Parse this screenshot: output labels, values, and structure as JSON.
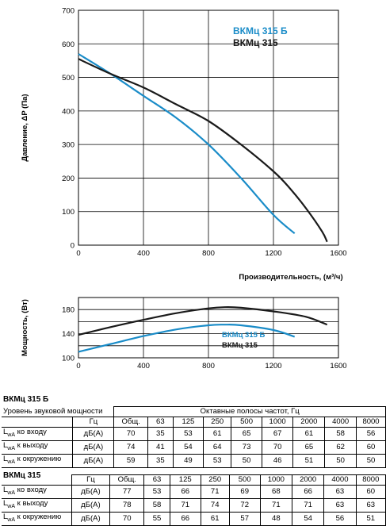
{
  "chart_data": [
    {
      "type": "line",
      "xlabel": "Производительность, (м³/ч)",
      "ylabel": "Давление, ΔP (Па)",
      "xlim": [
        0,
        1600
      ],
      "ylim": [
        0,
        700
      ],
      "xticks": [
        "0",
        "400",
        "800",
        "1200",
        "1600"
      ],
      "yticks": [
        "0",
        "100",
        "200",
        "300",
        "400",
        "500",
        "600",
        "700"
      ],
      "grid": true,
      "legend_position": "top-right",
      "series": [
        {
          "name": "ВКМц 315 Б",
          "color": "#1a8cc8",
          "x": [
            0,
            200,
            400,
            600,
            800,
            1000,
            1200,
            1330
          ],
          "y": [
            570,
            510,
            445,
            380,
            300,
            200,
            90,
            35
          ]
        },
        {
          "name": "ВКМц 315",
          "color": "#1a1a1a",
          "x": [
            0,
            200,
            400,
            600,
            800,
            1000,
            1200,
            1300,
            1400,
            1500,
            1530
          ],
          "y": [
            555,
            510,
            470,
            420,
            370,
            300,
            220,
            170,
            110,
            40,
            10
          ]
        }
      ]
    },
    {
      "type": "line",
      "xlabel": "",
      "ylabel": "Мощность, (Вт)",
      "xlim": [
        0,
        1600
      ],
      "ylim": [
        100,
        200
      ],
      "xticks": [
        "0",
        "400",
        "800",
        "1200",
        "1600"
      ],
      "yticks": [
        "100",
        "140",
        "180"
      ],
      "grid": true,
      "legend_position": "bottom-right",
      "series": [
        {
          "name": "ВКМц 315 Б",
          "color": "#1a8cc8",
          "x": [
            0,
            200,
            400,
            600,
            800,
            900,
            1000,
            1200,
            1330
          ],
          "y": [
            110,
            123,
            136,
            147,
            154,
            155,
            154,
            146,
            135
          ]
        },
        {
          "name": "ВКМц 315",
          "color": "#1a1a1a",
          "x": [
            0,
            200,
            400,
            600,
            800,
            900,
            1000,
            1200,
            1400,
            1530
          ],
          "y": [
            138,
            151,
            163,
            174,
            182,
            184,
            183,
            177,
            168,
            155
          ]
        }
      ]
    }
  ],
  "table1": {
    "title": "ВКМц 315 Б",
    "header_label": "Уровень звуковой мощности",
    "header_band": "Октавные полосы частот, Гц",
    "col_unit": "Гц",
    "cols": [
      "Общ.",
      "63",
      "125",
      "250",
      "500",
      "1000",
      "2000",
      "4000",
      "8000"
    ],
    "rows": [
      {
        "label_main": "L",
        "label_sub": "wA",
        "label_rest": " ко входу",
        "unit": "дБ(А)",
        "values": [
          "70",
          "35",
          "53",
          "61",
          "65",
          "67",
          "61",
          "58",
          "56"
        ]
      },
      {
        "label_main": "L",
        "label_sub": "wA",
        "label_rest": " к выходу",
        "unit": "дБ(А)",
        "values": [
          "74",
          "41",
          "54",
          "64",
          "73",
          "70",
          "65",
          "62",
          "60"
        ]
      },
      {
        "label_main": "L",
        "label_sub": "wA",
        "label_rest": " к окружению",
        "unit": "дБ(А)",
        "values": [
          "59",
          "35",
          "49",
          "53",
          "50",
          "46",
          "51",
          "50",
          "50"
        ]
      }
    ]
  },
  "table2": {
    "title": "ВКМц 315",
    "col_unit": "Гц",
    "cols": [
      "Общ.",
      "63",
      "125",
      "250",
      "500",
      "1000",
      "2000",
      "4000",
      "8000"
    ],
    "rows": [
      {
        "label_main": "L",
        "label_sub": "wA",
        "label_rest": " ко входу",
        "unit": "дБ(А)",
        "values": [
          "77",
          "53",
          "66",
          "71",
          "69",
          "68",
          "66",
          "63",
          "60"
        ]
      },
      {
        "label_main": "L",
        "label_sub": "wA",
        "label_rest": " к выходу",
        "unit": "дБ(А)",
        "values": [
          "78",
          "58",
          "71",
          "74",
          "72",
          "71",
          "71",
          "63",
          "63"
        ]
      },
      {
        "label_main": "L",
        "label_sub": "wA",
        "label_rest": " к окружению",
        "unit": "дБ(А)",
        "values": [
          "70",
          "55",
          "66",
          "61",
          "57",
          "48",
          "54",
          "56",
          "51"
        ]
      }
    ]
  }
}
